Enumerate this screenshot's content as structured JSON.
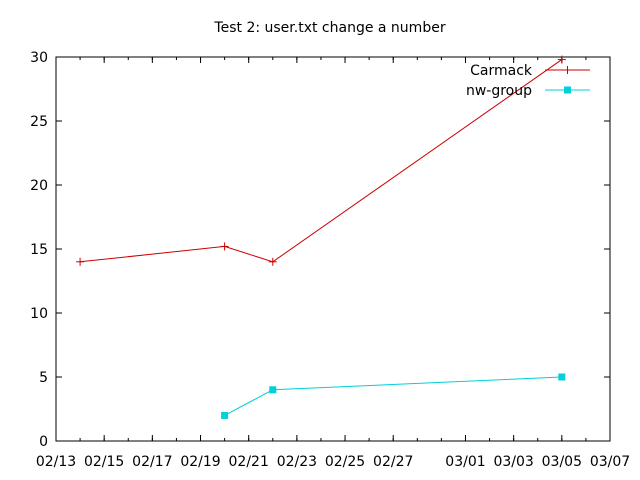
{
  "chart_data": {
    "type": "line",
    "title": "Test 2: user.txt change a number",
    "xlabel": "",
    "ylabel": "",
    "x_type": "date",
    "x_tick_labels": [
      "02/13",
      "02/15",
      "02/17",
      "02/19",
      "02/21",
      "02/23",
      "02/25",
      "02/27",
      "03/01",
      "03/03",
      "03/05",
      "03/07"
    ],
    "xlim": [
      "02/13",
      "03/07"
    ],
    "y_ticks": [
      0,
      5,
      10,
      15,
      20,
      25,
      30
    ],
    "ylim": [
      0,
      30
    ],
    "grid": false,
    "legend_position": "top-right",
    "series": [
      {
        "name": "Carmack",
        "color": "#cc0000",
        "marker": "plus",
        "points": [
          {
            "x": "02/14",
            "y": 14.0
          },
          {
            "x": "02/20",
            "y": 15.2
          },
          {
            "x": "02/22",
            "y": 14.0
          },
          {
            "x": "03/05",
            "y": 29.8
          }
        ]
      },
      {
        "name": "nw-group",
        "color": "#00d0d8",
        "marker": "square",
        "points": [
          {
            "x": "02/20",
            "y": 2.0
          },
          {
            "x": "02/22",
            "y": 4.0
          },
          {
            "x": "03/05",
            "y": 5.0
          }
        ]
      }
    ]
  }
}
